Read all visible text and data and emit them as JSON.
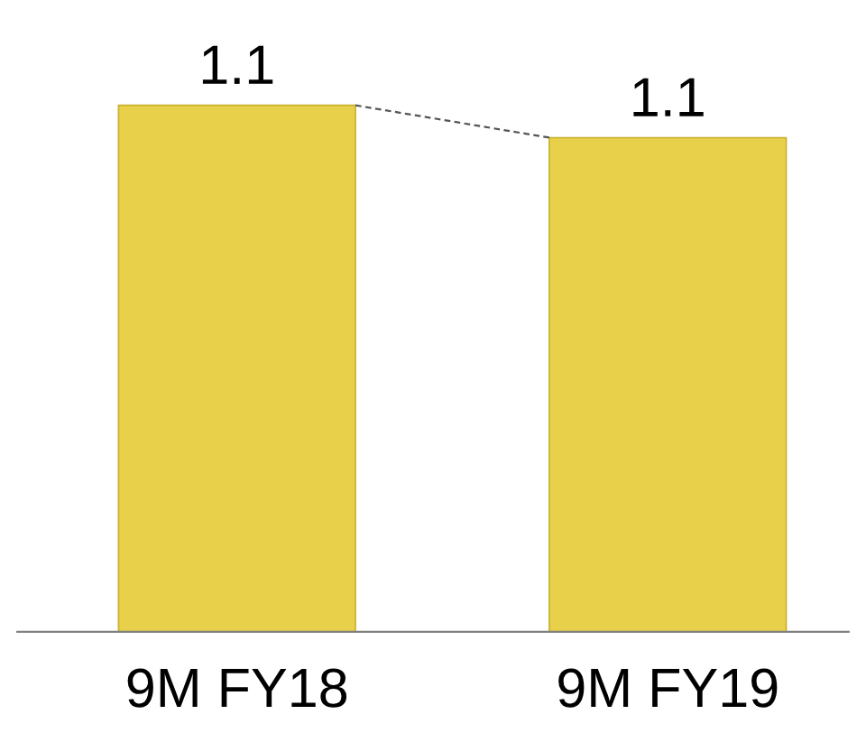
{
  "chart_data": {
    "type": "bar",
    "categories": [
      "9M FY18",
      "9M FY19"
    ],
    "values": [
      1.14,
      1.07
    ],
    "value_labels": [
      "1.1",
      "1.1"
    ],
    "color": "#e8d04a",
    "tick_labels": "x",
    "grid": false,
    "legend": false
  }
}
